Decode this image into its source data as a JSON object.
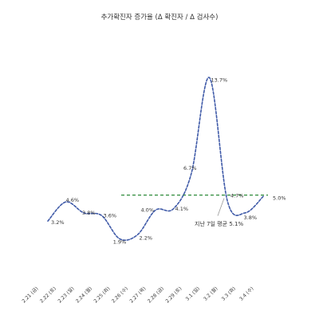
{
  "chart_data": {
    "type": "line",
    "title": "추가확진자 증가율 (Δ 확진자 / Δ 검사수)",
    "xlabel": "",
    "ylabel": "",
    "categories": [
      "2.21 (금)",
      "2.22 (토)",
      "2.23 (일)",
      "2.24 (월)",
      "2.25 (화)",
      "2.26 (수)",
      "2.27 (목)",
      "2.28 (금)",
      "2.29 (토)",
      "3.1 (일)",
      "3.2 (월)",
      "3.3 (화)",
      "3.4 (수)"
    ],
    "series": [
      {
        "values": [
          3.2,
          4.6,
          3.8,
          3.6,
          1.9,
          2.2,
          4.0,
          4.1,
          6.7,
          13.7,
          4.7,
          3.8,
          5.0
        ],
        "data_labels": [
          "3.2%",
          "4.6%",
          "3.8%",
          "3.6%",
          "1.9%",
          "2.2%",
          "4.0%",
          "4.1%",
          "6.7%",
          "13.7%",
          "4.7%",
          "3.8%",
          "5.0%"
        ]
      }
    ],
    "reference_line": {
      "value": 5.1,
      "label": "지난 7일 평균 5.1%"
    },
    "ylim": [
      0,
      15
    ],
    "grid": false,
    "colors": {
      "series_line": "#3f5aa8",
      "reference_line": "#2e8b3a"
    }
  }
}
